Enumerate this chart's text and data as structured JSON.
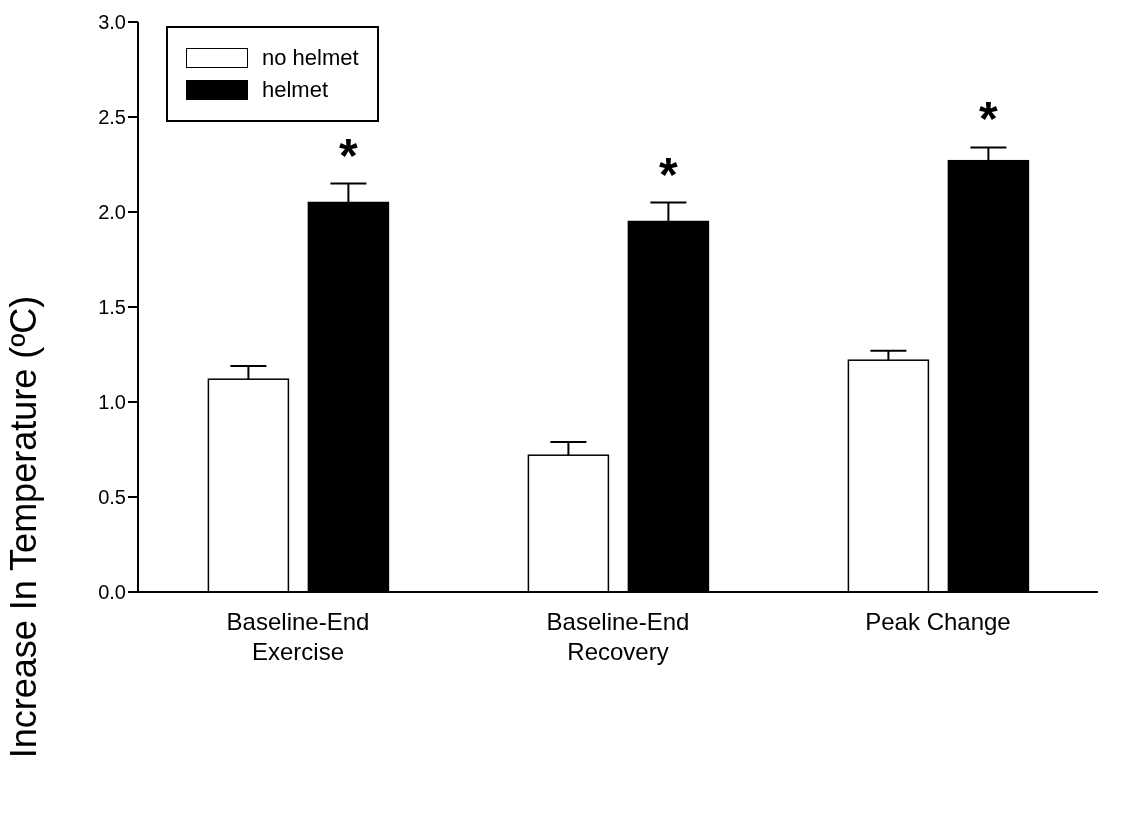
{
  "chart_data": {
    "type": "bar",
    "ylabel": "Increase In Temperature (ºC)",
    "categories": [
      "Baseline-End\nExercise",
      "Baseline-End\nRecovery",
      "Peak Change"
    ],
    "series": [
      {
        "name": "no helmet",
        "color": "#ffffff",
        "values": [
          1.12,
          0.72,
          1.22
        ],
        "errors": [
          [
            1.12,
            1.19
          ],
          [
            0.72,
            0.79
          ],
          [
            1.22,
            1.27
          ]
        ]
      },
      {
        "name": "helmet",
        "color": "#000000",
        "values": [
          2.05,
          1.95,
          2.27
        ],
        "errors": [
          [
            2.05,
            2.15
          ],
          [
            1.95,
            2.05
          ],
          [
            2.27,
            2.34
          ]
        ]
      }
    ],
    "ylim": [
      0,
      3
    ],
    "yticks": [
      {
        "value": 0,
        "label": "0.0"
      },
      0.5,
      {
        "value": 1,
        "label": "1.0"
      },
      1.5,
      {
        "value": 2,
        "label": "2.0"
      },
      2.5,
      {
        "value": 3,
        "label": "3.0"
      }
    ],
    "grid": false,
    "legend": "top left",
    "annotations": [
      "*",
      "*",
      "*"
    ]
  }
}
